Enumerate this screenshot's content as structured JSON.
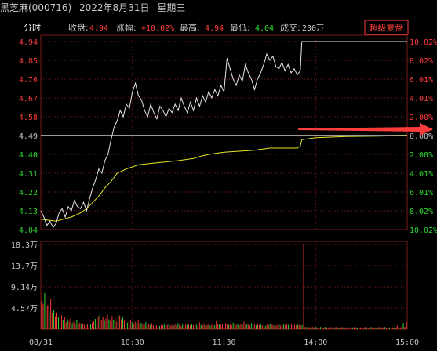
{
  "header": {
    "stock_name": "黑芝麻(000716)",
    "date": "2022年8月31日",
    "weekday": "星期三"
  },
  "info_bar": {
    "mode_label": "分时",
    "close_label": "收盘:",
    "close_value": "4.94",
    "change_label": "涨幅:",
    "change_value": "+10.02%",
    "high_label": "最高:",
    "high_value": "4.94",
    "low_label": "最低:",
    "low_value": "4.04",
    "volume_label": "成交:",
    "volume_value": "230万",
    "button_label": "超级复盘"
  },
  "colors": {
    "background": "#000000",
    "grid": "#7a1c1c",
    "price_line": "#e6e6e6",
    "avg_line": "#e6e62a",
    "up": "#ff3c3c",
    "down": "#2fd62f",
    "volume_up": "#ff3c3c",
    "volume_down": "#2fd62f",
    "arrow": "#ff3c3c"
  },
  "chart_data": {
    "type": "line",
    "reference_price": 4.49,
    "price_axis": {
      "ticks": [
        "4.94",
        "4.85",
        "4.76",
        "4.67",
        "4.58",
        "4.49",
        "4.40",
        "4.31",
        "4.22",
        "4.13",
        "4.04"
      ],
      "range": [
        4.04,
        4.94
      ]
    },
    "percent_axis": {
      "ticks": [
        "10.02%",
        "8.02%",
        "6.01%",
        "4.01%",
        "2.00%",
        "0.00%",
        "2.00%",
        "4.01%",
        "6.01%",
        "8.02%",
        "10.02%"
      ]
    },
    "volume_axis": {
      "ticks": [
        "18.3万",
        "13.7万",
        "9.14万",
        "4.57万"
      ],
      "max": 18.3
    },
    "time_ticks": [
      "08/31",
      "10:30",
      "11:30",
      "14:00",
      "15:00"
    ],
    "price_series": {
      "name": "",
      "points": [
        [
          0,
          4.13
        ],
        [
          2,
          4.1
        ],
        [
          4,
          4.06
        ],
        [
          6,
          4.08
        ],
        [
          8,
          4.05
        ],
        [
          10,
          4.07
        ],
        [
          12,
          4.12
        ],
        [
          14,
          4.14
        ],
        [
          16,
          4.1
        ],
        [
          18,
          4.15
        ],
        [
          20,
          4.13
        ],
        [
          22,
          4.18
        ],
        [
          24,
          4.15
        ],
        [
          26,
          4.14
        ],
        [
          28,
          4.17
        ],
        [
          30,
          4.13
        ],
        [
          32,
          4.19
        ],
        [
          34,
          4.24
        ],
        [
          36,
          4.28
        ],
        [
          38,
          4.33
        ],
        [
          40,
          4.31
        ],
        [
          42,
          4.37
        ],
        [
          44,
          4.4
        ],
        [
          46,
          4.47
        ],
        [
          48,
          4.53
        ],
        [
          50,
          4.56
        ],
        [
          52,
          4.61
        ],
        [
          54,
          4.58
        ],
        [
          56,
          4.64
        ],
        [
          58,
          4.62
        ],
        [
          60,
          4.7
        ],
        [
          62,
          4.74
        ],
        [
          64,
          4.68
        ],
        [
          66,
          4.66
        ],
        [
          68,
          4.61
        ],
        [
          70,
          4.58
        ],
        [
          72,
          4.64
        ],
        [
          74,
          4.6
        ],
        [
          76,
          4.57
        ],
        [
          78,
          4.63
        ],
        [
          80,
          4.61
        ],
        [
          82,
          4.58
        ],
        [
          84,
          4.62
        ],
        [
          86,
          4.6
        ],
        [
          88,
          4.64
        ],
        [
          90,
          4.61
        ],
        [
          92,
          4.67
        ],
        [
          94,
          4.63
        ],
        [
          96,
          4.6
        ],
        [
          98,
          4.65
        ],
        [
          100,
          4.61
        ],
        [
          102,
          4.67
        ],
        [
          104,
          4.63
        ],
        [
          106,
          4.68
        ],
        [
          108,
          4.65
        ],
        [
          110,
          4.7
        ],
        [
          112,
          4.67
        ],
        [
          114,
          4.71
        ],
        [
          116,
          4.68
        ],
        [
          118,
          4.73
        ],
        [
          120,
          4.7
        ],
        [
          122,
          4.86
        ],
        [
          124,
          4.81
        ],
        [
          126,
          4.76
        ],
        [
          128,
          4.73
        ],
        [
          130,
          4.78
        ],
        [
          132,
          4.75
        ],
        [
          134,
          4.83
        ],
        [
          136,
          4.79
        ],
        [
          138,
          4.76
        ],
        [
          140,
          4.71
        ],
        [
          142,
          4.76
        ],
        [
          144,
          4.79
        ],
        [
          146,
          4.83
        ],
        [
          148,
          4.88
        ],
        [
          150,
          4.85
        ],
        [
          152,
          4.87
        ],
        [
          154,
          4.82
        ],
        [
          156,
          4.81
        ],
        [
          158,
          4.84
        ],
        [
          160,
          4.8
        ],
        [
          162,
          4.83
        ],
        [
          164,
          4.79
        ],
        [
          166,
          4.81
        ],
        [
          168,
          4.78
        ],
        [
          170,
          4.8
        ],
        [
          171,
          4.94
        ],
        [
          180,
          4.94
        ],
        [
          200,
          4.94
        ],
        [
          220,
          4.94
        ],
        [
          240,
          4.94
        ]
      ]
    },
    "avg_series": {
      "name": "",
      "points": [
        [
          0,
          4.09
        ],
        [
          10,
          4.08
        ],
        [
          20,
          4.1
        ],
        [
          26,
          4.12
        ],
        [
          30,
          4.14
        ],
        [
          34,
          4.17
        ],
        [
          38,
          4.2
        ],
        [
          42,
          4.24
        ],
        [
          46,
          4.27
        ],
        [
          50,
          4.31
        ],
        [
          56,
          4.33
        ],
        [
          64,
          4.35
        ],
        [
          76,
          4.36
        ],
        [
          90,
          4.37
        ],
        [
          100,
          4.38
        ],
        [
          104,
          4.39
        ],
        [
          110,
          4.4
        ],
        [
          120,
          4.41
        ],
        [
          140,
          4.42
        ],
        [
          150,
          4.43
        ],
        [
          168,
          4.43
        ],
        [
          170,
          4.44
        ],
        [
          171,
          4.47
        ],
        [
          180,
          4.48
        ],
        [
          200,
          4.485
        ],
        [
          220,
          4.487
        ],
        [
          240,
          4.49
        ]
      ]
    },
    "volume": {
      "values": [
        6.2,
        5.5,
        7.8,
        4.8,
        5.2,
        3.9,
        6.5,
        3.4,
        4.1,
        2.8,
        3.6,
        2.7,
        2.2,
        3.0,
        1.9,
        2.6,
        1.5,
        2.1,
        1.7,
        2.4,
        1.3,
        1.6,
        1.2,
        1.9,
        1.1,
        1.4,
        1.0,
        1.3,
        0.9,
        1.1,
        1.2,
        0.8,
        1.0,
        1.4,
        1.7,
        2.2,
        1.5,
        2.8,
        3.2,
        2.0,
        2.6,
        1.8,
        2.3,
        3.1,
        2.1,
        1.7,
        2.8,
        1.9,
        2.4,
        1.6,
        3.4,
        2.9,
        2.1,
        2.5,
        1.8,
        2.2,
        1.4,
        1.7,
        2.0,
        1.5,
        1.2,
        1.6,
        1.3,
        1.9,
        1.1,
        1.4,
        1.0,
        1.2,
        1.5,
        0.9,
        1.1,
        0.9,
        1.3,
        0.8,
        1.0,
        0.8,
        1.2,
        0.7,
        0.9,
        0.8,
        1.0,
        0.7,
        0.9,
        1.1,
        0.8,
        0.9,
        0.7,
        1.0,
        0.8,
        1.3,
        0.9,
        0.7,
        1.1,
        0.8,
        1.2,
        0.9,
        1.0,
        0.8,
        1.1,
        0.9,
        0.8,
        1.0,
        0.7,
        1.5,
        0.9,
        0.8,
        1.1,
        0.7,
        0.9,
        1.0,
        0.8,
        0.9,
        1.2,
        0.8,
        1.7,
        1.1,
        1.0,
        0.9,
        1.2,
        0.8,
        1.3,
        1.0,
        0.9,
        1.1,
        0.8,
        1.4,
        1.0,
        0.9,
        1.2,
        0.8,
        1.1,
        0.9,
        1.6,
        0.9,
        1.1,
        1.0,
        0.8,
        1.3,
        0.9,
        1.0,
        0.8,
        1.1,
        0.9,
        1.0,
        0.8,
        0.9,
        0.7,
        1.0,
        0.8,
        1.1,
        1.0,
        0.9,
        0.7,
        0.8,
        0.9,
        1.1,
        0.8,
        0.9,
        1.0,
        0.8,
        1.2,
        0.9,
        0.8,
        1.0,
        0.7,
        0.9,
        0.8,
        1.0,
        0.9,
        0.8,
        0.9,
        18.3,
        0.5,
        0.3,
        0.2,
        0.3,
        0.2,
        0.3,
        0.2,
        0.3,
        0.2,
        0.2,
        0.3,
        0.2,
        0.2,
        0.3,
        0.2,
        0.2,
        0.2,
        0.3,
        0.2,
        0.2,
        0.3,
        0.2,
        0.2,
        0.2,
        0.3,
        0.2,
        0.2,
        0.2,
        0.3,
        0.2,
        0.2,
        0.2,
        0.3,
        0.2,
        0.2,
        0.3,
        0.2,
        0.2,
        0.2,
        0.3,
        0.2,
        0.2,
        0.2,
        0.3,
        0.2,
        0.2,
        0.2,
        0.2,
        0.3,
        0.2,
        0.2,
        0.2,
        0.3,
        0.2,
        0.2,
        0.2,
        0.3,
        0.2,
        0.2,
        0.2,
        0.8,
        0.3,
        0.2,
        0.6,
        1.3,
        0.4,
        1.5
      ]
    }
  }
}
